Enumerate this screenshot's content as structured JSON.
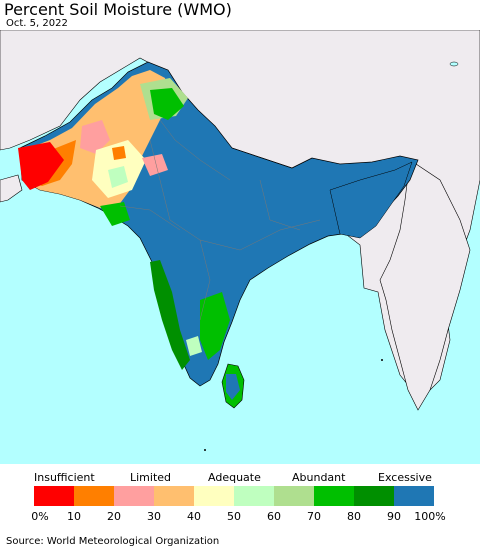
{
  "title": "Percent Soil Moisture (WMO)",
  "date": "Oct. 5, 2022",
  "source": "Source: World Meteorological Organization",
  "legend": {
    "categories": [
      "Insufficient",
      "Limited",
      "Adequate",
      "Abundant",
      "Excessive"
    ],
    "ticks": [
      "0%",
      "10",
      "20",
      "30",
      "40",
      "50",
      "60",
      "70",
      "80",
      "90",
      "100%"
    ],
    "colors": [
      "#ff0000",
      "#ff7f00",
      "#ff9f9f",
      "#ffbf6f",
      "#ffffbf",
      "#bfffbf",
      "#afdf8f",
      "#00bf00",
      "#008f00",
      "#1f77b4"
    ]
  },
  "map_colors": {
    "ocean": "#b3ffff",
    "outside_land": "#efebef",
    "excessive": "#1f77b4",
    "border": "#000000"
  }
}
